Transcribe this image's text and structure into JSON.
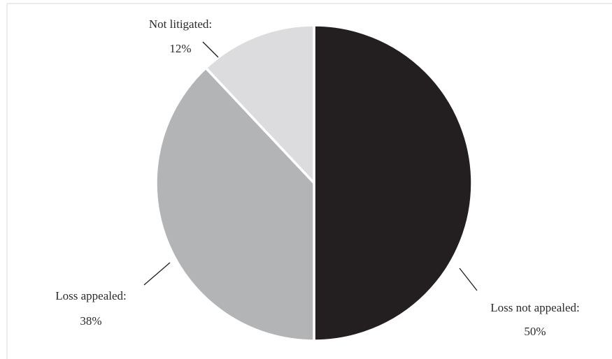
{
  "chart_data": {
    "type": "pie",
    "title": "",
    "slices": [
      {
        "name": "Loss not appealed",
        "value": 50,
        "label": "Loss not appealed:",
        "value_label": "50%",
        "color": "#231f20"
      },
      {
        "name": "Loss appealed",
        "value": 38,
        "label": "Loss appealed:",
        "value_label": "38%",
        "color": "#b3b4b6"
      },
      {
        "name": "Not litigated",
        "value": 12,
        "label": "Not litigated:",
        "value_label": "12%",
        "color": "#dcdcde"
      }
    ],
    "start_angle": "12 o'clock, clockwise",
    "slice_separator_color": "#ffffff",
    "legend": "none (labels on slices)"
  }
}
